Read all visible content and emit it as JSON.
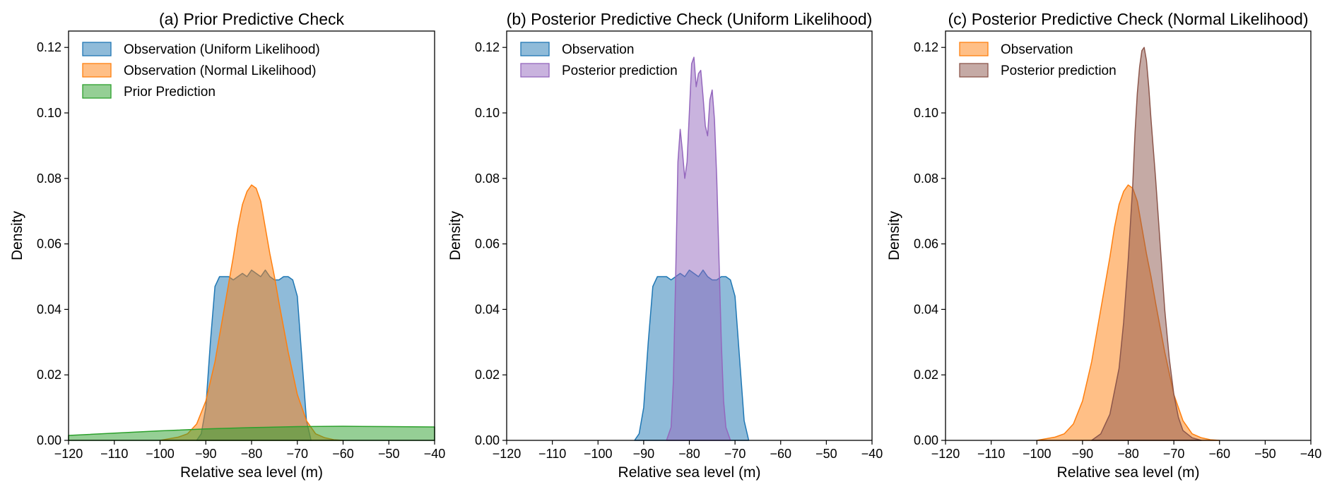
{
  "chart_data": [
    {
      "type": "area",
      "title": "(a) Prior Predictive Check",
      "xlabel": "Relative sea level (m)",
      "ylabel": "Density",
      "xlim": [
        -120,
        -40
      ],
      "ylim": [
        0,
        0.125
      ],
      "xticks": [
        -120,
        -110,
        -100,
        -90,
        -80,
        -70,
        -60,
        -50,
        -40
      ],
      "yticks": [
        0,
        0.02,
        0.04,
        0.06,
        0.08,
        0.1,
        0.12
      ],
      "xtick_labels": [
        "−120",
        "−110",
        "−100",
        "−90",
        "−80",
        "−70",
        "−60",
        "−50",
        "−40"
      ],
      "ytick_labels": [
        "0.00",
        "0.02",
        "0.04",
        "0.06",
        "0.08",
        "0.10",
        "0.12"
      ],
      "grid": false,
      "legend_position": "top-left",
      "series": [
        {
          "name": "Observation (Uniform Likelihood)",
          "color": "#1f77b4",
          "x": [
            -92,
            -91,
            -90,
            -89,
            -88,
            -87,
            -86,
            -85,
            -84,
            -83,
            -82,
            -81,
            -80,
            -79,
            -78,
            -77,
            -76,
            -75,
            -74,
            -73,
            -72,
            -71,
            -70,
            -69,
            -68,
            -67
          ],
          "y": [
            0,
            0.002,
            0.01,
            0.03,
            0.047,
            0.05,
            0.05,
            0.05,
            0.049,
            0.05,
            0.051,
            0.05,
            0.052,
            0.051,
            0.05,
            0.052,
            0.05,
            0.049,
            0.049,
            0.05,
            0.05,
            0.049,
            0.044,
            0.025,
            0.006,
            0
          ]
        },
        {
          "name": "Observation (Normal Likelihood)",
          "color": "#ff7f0e",
          "x": [
            -100,
            -96,
            -94,
            -92,
            -90,
            -88,
            -86,
            -84,
            -83,
            -82,
            -81,
            -80,
            -79,
            -78,
            -77,
            -76,
            -75,
            -74,
            -72,
            -70,
            -68,
            -66,
            -64,
            -62,
            -60
          ],
          "y": [
            0,
            0.001,
            0.002,
            0.005,
            0.012,
            0.024,
            0.04,
            0.056,
            0.065,
            0.072,
            0.076,
            0.078,
            0.077,
            0.073,
            0.065,
            0.057,
            0.05,
            0.042,
            0.027,
            0.014,
            0.006,
            0.002,
            0.0008,
            0.0002,
            0
          ]
        },
        {
          "name": "Prior Prediction",
          "color": "#2ca02c",
          "x": [
            -120,
            -110,
            -100,
            -90,
            -80,
            -70,
            -60,
            -50,
            -40
          ],
          "y": [
            0.0015,
            0.0022,
            0.0029,
            0.0035,
            0.0039,
            0.0042,
            0.0043,
            0.0042,
            0.0041
          ]
        }
      ]
    },
    {
      "type": "area",
      "title": "(b) Posterior Predictive Check (Uniform Likelihood)",
      "xlabel": "Relative sea level (m)",
      "ylabel": "Density",
      "xlim": [
        -120,
        -40
      ],
      "ylim": [
        0,
        0.125
      ],
      "xticks": [
        -120,
        -110,
        -100,
        -90,
        -80,
        -70,
        -60,
        -50,
        -40
      ],
      "yticks": [
        0,
        0.02,
        0.04,
        0.06,
        0.08,
        0.1,
        0.12
      ],
      "xtick_labels": [
        "−120",
        "−110",
        "−100",
        "−90",
        "−80",
        "−70",
        "−60",
        "−50",
        "−40"
      ],
      "ytick_labels": [
        "0.00",
        "0.02",
        "0.04",
        "0.06",
        "0.08",
        "0.10",
        "0.12"
      ],
      "grid": false,
      "legend_position": "top-left",
      "series": [
        {
          "name": "Observation",
          "color": "#1f77b4",
          "x": [
            -92,
            -91,
            -90,
            -89,
            -88,
            -87,
            -86,
            -85,
            -84,
            -83,
            -82,
            -81,
            -80,
            -79,
            -78,
            -77,
            -76,
            -75,
            -74,
            -73,
            -72,
            -71,
            -70,
            -69,
            -68,
            -67
          ],
          "y": [
            0,
            0.002,
            0.01,
            0.03,
            0.047,
            0.05,
            0.05,
            0.05,
            0.049,
            0.05,
            0.051,
            0.05,
            0.052,
            0.051,
            0.05,
            0.052,
            0.05,
            0.049,
            0.049,
            0.05,
            0.05,
            0.049,
            0.044,
            0.025,
            0.006,
            0
          ]
        },
        {
          "name": "Posterior prediction",
          "color": "#9467bd",
          "x": [
            -85,
            -84,
            -83.5,
            -83,
            -82.5,
            -82,
            -81.5,
            -81,
            -80.5,
            -80,
            -79.5,
            -79,
            -78.5,
            -78,
            -77.5,
            -77,
            -76.5,
            -76,
            -75.5,
            -75,
            -74.5,
            -74,
            -73.5,
            -73,
            -72.5,
            -72,
            -71
          ],
          "y": [
            0,
            0.004,
            0.018,
            0.05,
            0.085,
            0.095,
            0.088,
            0.08,
            0.085,
            0.1,
            0.115,
            0.117,
            0.108,
            0.112,
            0.113,
            0.105,
            0.096,
            0.093,
            0.104,
            0.107,
            0.098,
            0.08,
            0.055,
            0.03,
            0.012,
            0.004,
            0
          ]
        }
      ]
    },
    {
      "type": "area",
      "title": "(c) Posterior Predictive Check (Normal Likelihood)",
      "xlabel": "Relative sea level (m)",
      "ylabel": "Density",
      "xlim": [
        -120,
        -40
      ],
      "ylim": [
        0,
        0.125
      ],
      "xticks": [
        -120,
        -110,
        -100,
        -90,
        -80,
        -70,
        -60,
        -50,
        -40
      ],
      "yticks": [
        0,
        0.02,
        0.04,
        0.06,
        0.08,
        0.1,
        0.12
      ],
      "xtick_labels": [
        "−120",
        "−110",
        "−100",
        "−90",
        "−80",
        "−70",
        "−60",
        "−50",
        "−40"
      ],
      "ytick_labels": [
        "0.00",
        "0.02",
        "0.04",
        "0.06",
        "0.08",
        "0.10",
        "0.12"
      ],
      "grid": false,
      "legend_position": "top-left",
      "series": [
        {
          "name": "Observation",
          "color": "#ff7f0e",
          "x": [
            -100,
            -96,
            -94,
            -92,
            -90,
            -88,
            -86,
            -84,
            -83,
            -82,
            -81,
            -80,
            -79,
            -78,
            -77,
            -76,
            -75,
            -74,
            -72,
            -70,
            -68,
            -66,
            -64,
            -62,
            -60
          ],
          "y": [
            0,
            0.001,
            0.002,
            0.005,
            0.012,
            0.024,
            0.04,
            0.056,
            0.065,
            0.072,
            0.076,
            0.078,
            0.077,
            0.073,
            0.065,
            0.057,
            0.05,
            0.042,
            0.027,
            0.014,
            0.006,
            0.002,
            0.0008,
            0.0002,
            0
          ]
        },
        {
          "name": "Posterior prediction",
          "color": "#8c564b",
          "x": [
            -88,
            -86,
            -84,
            -82,
            -81,
            -80,
            -79,
            -78.5,
            -78,
            -77.5,
            -77,
            -76.5,
            -76,
            -75.5,
            -75,
            -74,
            -73,
            -72,
            -71,
            -70,
            -69,
            -68,
            -66,
            -64
          ],
          "y": [
            0,
            0.002,
            0.008,
            0.022,
            0.036,
            0.055,
            0.078,
            0.094,
            0.106,
            0.114,
            0.119,
            0.12,
            0.116,
            0.108,
            0.098,
            0.08,
            0.06,
            0.04,
            0.025,
            0.014,
            0.007,
            0.003,
            0.0008,
            0
          ]
        }
      ]
    }
  ]
}
